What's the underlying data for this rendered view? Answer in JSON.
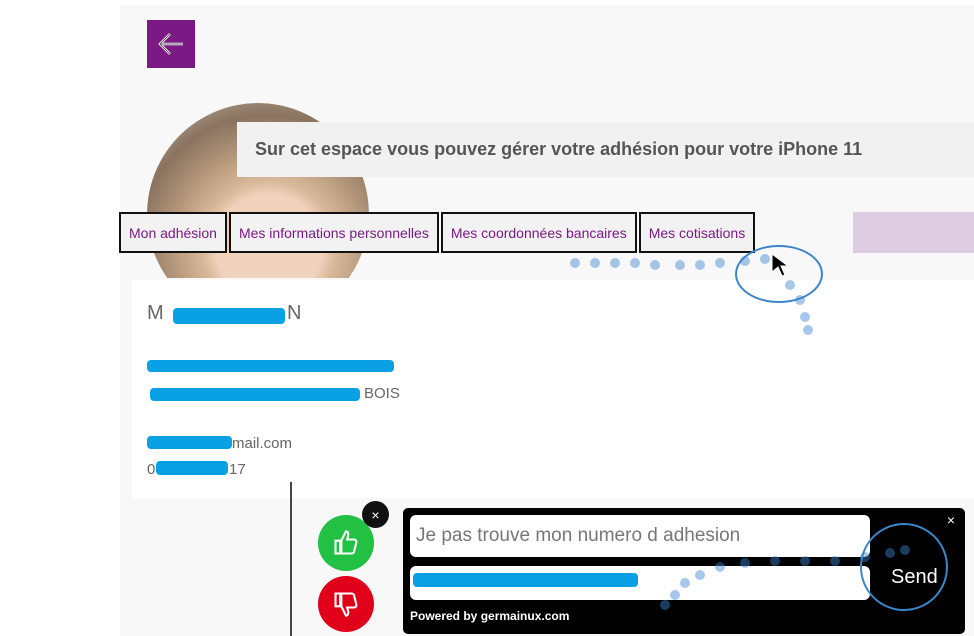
{
  "header": {
    "back_icon": "arrow-left-icon",
    "banner": "Sur cet espace vous pouvez gérer votre adhésion pour votre iPhone 11"
  },
  "tabs": [
    {
      "label": "Mon adhésion"
    },
    {
      "label": "Mes informations personnelles"
    },
    {
      "label": "Mes coordonnées bancaires"
    },
    {
      "label": "Mes cotisations"
    }
  ],
  "profile": {
    "name_start": "M",
    "name_end": "N",
    "city_end": "BOIS",
    "email_end": "mail.com",
    "phone_start": "0",
    "phone_end": "17"
  },
  "feedback": {
    "close": "×",
    "like_icon": "thumbs-up-icon",
    "dislike_icon": "thumbs-down-icon"
  },
  "chat": {
    "message": "Je pas trouve mon numero d adhesion",
    "send": "Send",
    "close": "×",
    "powered": "Powered by germainux.com"
  },
  "colors": {
    "brand": "#7b1a84",
    "like": "#22c144",
    "dislike": "#e0001a",
    "redaction": "#09a0e6"
  }
}
